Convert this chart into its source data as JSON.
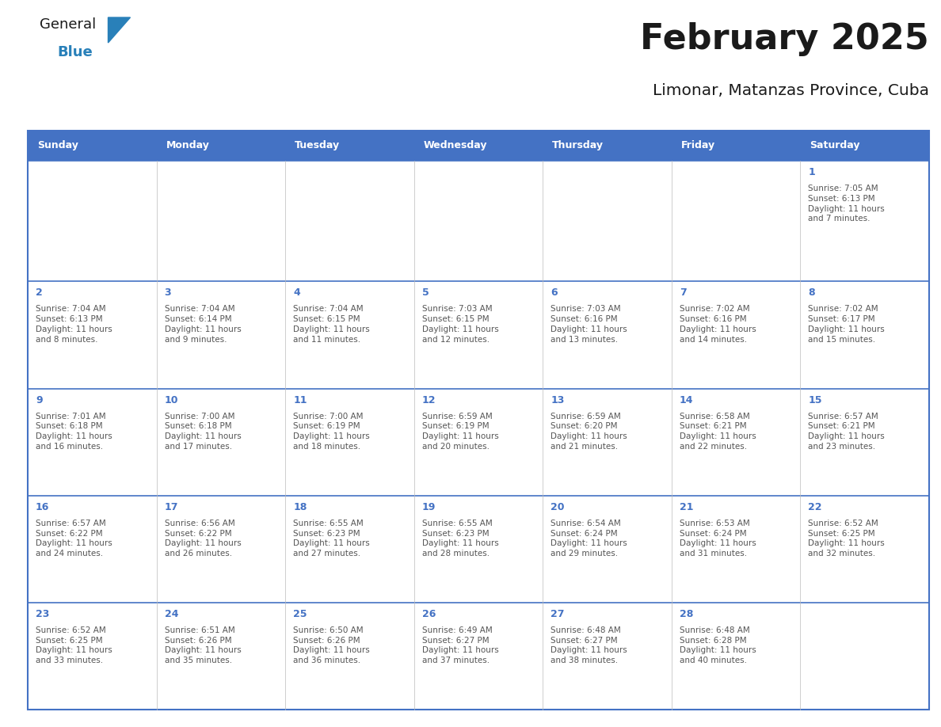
{
  "title": "February 2025",
  "subtitle": "Limonar, Matanzas Province, Cuba",
  "header_bg": "#4472C4",
  "header_text_color": "#FFFFFF",
  "cell_bg": "#FFFFFF",
  "cell_border_color": "#4472C4",
  "day_number_color": "#4472C4",
  "cell_text_color": "#555555",
  "days_of_week": [
    "Sunday",
    "Monday",
    "Tuesday",
    "Wednesday",
    "Thursday",
    "Friday",
    "Saturday"
  ],
  "weeks": [
    [
      {
        "day": null,
        "text": ""
      },
      {
        "day": null,
        "text": ""
      },
      {
        "day": null,
        "text": ""
      },
      {
        "day": null,
        "text": ""
      },
      {
        "day": null,
        "text": ""
      },
      {
        "day": null,
        "text": ""
      },
      {
        "day": 1,
        "text": "Sunrise: 7:05 AM\nSunset: 6:13 PM\nDaylight: 11 hours\nand 7 minutes."
      }
    ],
    [
      {
        "day": 2,
        "text": "Sunrise: 7:04 AM\nSunset: 6:13 PM\nDaylight: 11 hours\nand 8 minutes."
      },
      {
        "day": 3,
        "text": "Sunrise: 7:04 AM\nSunset: 6:14 PM\nDaylight: 11 hours\nand 9 minutes."
      },
      {
        "day": 4,
        "text": "Sunrise: 7:04 AM\nSunset: 6:15 PM\nDaylight: 11 hours\nand 11 minutes."
      },
      {
        "day": 5,
        "text": "Sunrise: 7:03 AM\nSunset: 6:15 PM\nDaylight: 11 hours\nand 12 minutes."
      },
      {
        "day": 6,
        "text": "Sunrise: 7:03 AM\nSunset: 6:16 PM\nDaylight: 11 hours\nand 13 minutes."
      },
      {
        "day": 7,
        "text": "Sunrise: 7:02 AM\nSunset: 6:16 PM\nDaylight: 11 hours\nand 14 minutes."
      },
      {
        "day": 8,
        "text": "Sunrise: 7:02 AM\nSunset: 6:17 PM\nDaylight: 11 hours\nand 15 minutes."
      }
    ],
    [
      {
        "day": 9,
        "text": "Sunrise: 7:01 AM\nSunset: 6:18 PM\nDaylight: 11 hours\nand 16 minutes."
      },
      {
        "day": 10,
        "text": "Sunrise: 7:00 AM\nSunset: 6:18 PM\nDaylight: 11 hours\nand 17 minutes."
      },
      {
        "day": 11,
        "text": "Sunrise: 7:00 AM\nSunset: 6:19 PM\nDaylight: 11 hours\nand 18 minutes."
      },
      {
        "day": 12,
        "text": "Sunrise: 6:59 AM\nSunset: 6:19 PM\nDaylight: 11 hours\nand 20 minutes."
      },
      {
        "day": 13,
        "text": "Sunrise: 6:59 AM\nSunset: 6:20 PM\nDaylight: 11 hours\nand 21 minutes."
      },
      {
        "day": 14,
        "text": "Sunrise: 6:58 AM\nSunset: 6:21 PM\nDaylight: 11 hours\nand 22 minutes."
      },
      {
        "day": 15,
        "text": "Sunrise: 6:57 AM\nSunset: 6:21 PM\nDaylight: 11 hours\nand 23 minutes."
      }
    ],
    [
      {
        "day": 16,
        "text": "Sunrise: 6:57 AM\nSunset: 6:22 PM\nDaylight: 11 hours\nand 24 minutes."
      },
      {
        "day": 17,
        "text": "Sunrise: 6:56 AM\nSunset: 6:22 PM\nDaylight: 11 hours\nand 26 minutes."
      },
      {
        "day": 18,
        "text": "Sunrise: 6:55 AM\nSunset: 6:23 PM\nDaylight: 11 hours\nand 27 minutes."
      },
      {
        "day": 19,
        "text": "Sunrise: 6:55 AM\nSunset: 6:23 PM\nDaylight: 11 hours\nand 28 minutes."
      },
      {
        "day": 20,
        "text": "Sunrise: 6:54 AM\nSunset: 6:24 PM\nDaylight: 11 hours\nand 29 minutes."
      },
      {
        "day": 21,
        "text": "Sunrise: 6:53 AM\nSunset: 6:24 PM\nDaylight: 11 hours\nand 31 minutes."
      },
      {
        "day": 22,
        "text": "Sunrise: 6:52 AM\nSunset: 6:25 PM\nDaylight: 11 hours\nand 32 minutes."
      }
    ],
    [
      {
        "day": 23,
        "text": "Sunrise: 6:52 AM\nSunset: 6:25 PM\nDaylight: 11 hours\nand 33 minutes."
      },
      {
        "day": 24,
        "text": "Sunrise: 6:51 AM\nSunset: 6:26 PM\nDaylight: 11 hours\nand 35 minutes."
      },
      {
        "day": 25,
        "text": "Sunrise: 6:50 AM\nSunset: 6:26 PM\nDaylight: 11 hours\nand 36 minutes."
      },
      {
        "day": 26,
        "text": "Sunrise: 6:49 AM\nSunset: 6:27 PM\nDaylight: 11 hours\nand 37 minutes."
      },
      {
        "day": 27,
        "text": "Sunrise: 6:48 AM\nSunset: 6:27 PM\nDaylight: 11 hours\nand 38 minutes."
      },
      {
        "day": 28,
        "text": "Sunrise: 6:48 AM\nSunset: 6:28 PM\nDaylight: 11 hours\nand 40 minutes."
      },
      {
        "day": null,
        "text": ""
      }
    ]
  ],
  "logo_general_color": "#1a1a1a",
  "logo_blue_color": "#2980B9",
  "logo_triangle_color": "#2980B9"
}
